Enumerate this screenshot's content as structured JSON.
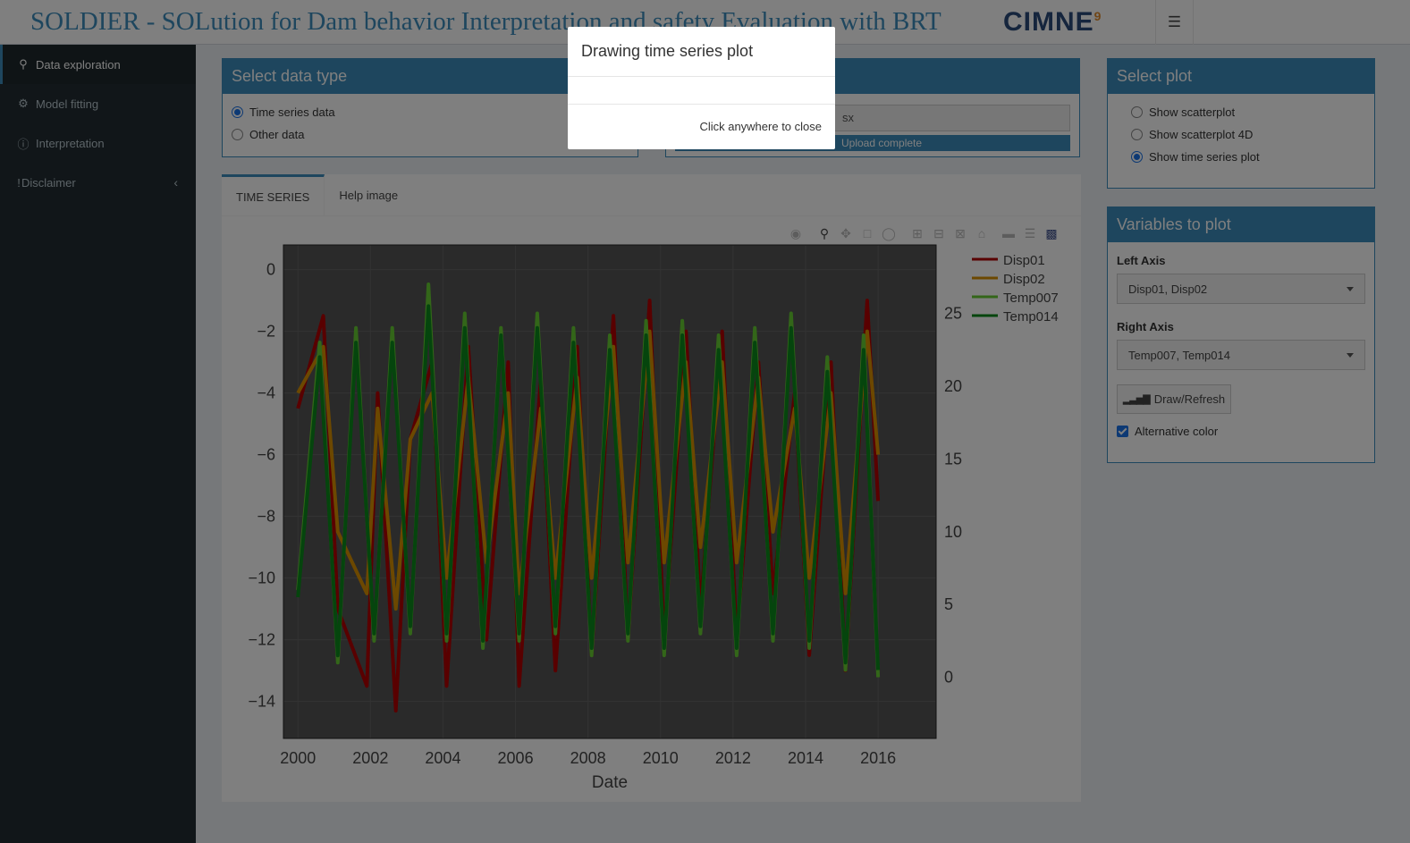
{
  "header": {
    "title": "SOLDIER - SOLution for Dam behavior Interpretation and safety Evaluation with BRT",
    "logo_text": "CIMNE",
    "menu_icon": "hamburger-icon"
  },
  "sidebar": {
    "items": [
      {
        "label": "Data exploration",
        "icon": "search-icon",
        "active": true
      },
      {
        "label": "Model fitting",
        "icon": "gear-icon"
      },
      {
        "label": "Interpretation",
        "icon": "info-icon"
      },
      {
        "label": "Disclaimer",
        "icon": "exclamation-icon"
      }
    ]
  },
  "data_type": {
    "title": "Select data type",
    "options": [
      "Time series data",
      "Other data"
    ],
    "selected": "Time series data"
  },
  "upload": {
    "file_name": "sx",
    "progress_label": "Upload complete"
  },
  "select_plot": {
    "title": "Select plot",
    "options": [
      "Show scatterplot",
      "Show scatterplot 4D",
      "Show time series plot"
    ],
    "selected": "Show time series plot"
  },
  "variables": {
    "title": "Variables to plot",
    "left_label": "Left Axis",
    "left_value": "Disp01, Disp02",
    "right_label": "Right Axis",
    "right_value": "Temp007, Temp014",
    "button": "Draw/Refresh",
    "alt_color_label": "Alternative color",
    "alt_color_checked": true
  },
  "tabs": [
    "TIME SERIES",
    "Help image"
  ],
  "modal": {
    "title": "Drawing time series plot",
    "footer": "Click anywhere to close"
  },
  "chart_data": {
    "type": "line",
    "xlabel": "Date",
    "x_ticks": [
      "2000",
      "2002",
      "2004",
      "2006",
      "2008",
      "2010",
      "2012",
      "2014",
      "2016"
    ],
    "left_ticks": [
      "0",
      "−2",
      "−4",
      "−6",
      "−8",
      "−10",
      "−12",
      "−14"
    ],
    "right_ticks": [
      "25",
      "20",
      "15",
      "10",
      "5",
      "0"
    ],
    "xlim": [
      1999.6,
      2017.6
    ],
    "ylim_left": [
      -15.2,
      0.8
    ],
    "ylim_right": [
      -4.2,
      29.7
    ],
    "legend_position": "top-right",
    "plot_bg": "#555555",
    "series": [
      {
        "name": "Disp01",
        "axis": "left",
        "color": "#b30000",
        "x": [
          2000.0,
          2000.7,
          2001.1,
          2001.9,
          2002.2,
          2002.7,
          2003.1,
          2003.7,
          2004.1,
          2004.7,
          2005.2,
          2005.8,
          2006.1,
          2006.7,
          2007.1,
          2007.7,
          2008.1,
          2008.7,
          2009.1,
          2009.7,
          2010.1,
          2010.7,
          2011.1,
          2011.7,
          2012.1,
          2012.7,
          2013.1,
          2013.7,
          2014.1,
          2014.7,
          2015.1,
          2015.7,
          2016.0
        ],
        "y": [
          -4.5,
          -1.5,
          -11.0,
          -13.5,
          -4.0,
          -14.3,
          -5.5,
          -3.0,
          -13.5,
          -2.5,
          -12.0,
          -3.0,
          -13.5,
          -3.5,
          -13.0,
          -2.5,
          -12.5,
          -1.5,
          -12.0,
          -1.0,
          -12.0,
          -2.0,
          -11.0,
          -2.0,
          -12.0,
          -3.0,
          -10.5,
          -4.0,
          -12.5,
          -3.0,
          -13.0,
          -1.0,
          -7.5
        ]
      },
      {
        "name": "Disp02",
        "axis": "left",
        "color": "#d99000",
        "x": [
          2000.0,
          2000.7,
          2001.1,
          2001.9,
          2002.2,
          2002.7,
          2003.1,
          2003.7,
          2004.1,
          2004.7,
          2005.2,
          2005.8,
          2006.1,
          2006.7,
          2007.1,
          2007.7,
          2008.1,
          2008.7,
          2009.1,
          2009.7,
          2010.1,
          2010.7,
          2011.1,
          2011.7,
          2012.1,
          2012.7,
          2013.1,
          2013.7,
          2014.1,
          2014.7,
          2015.1,
          2015.7,
          2016.0
        ],
        "y": [
          -4.0,
          -2.5,
          -8.5,
          -10.5,
          -4.5,
          -11.0,
          -5.5,
          -4.0,
          -10.0,
          -3.5,
          -9.5,
          -4.0,
          -10.5,
          -4.5,
          -10.0,
          -3.5,
          -10.0,
          -2.5,
          -9.5,
          -2.0,
          -9.5,
          -3.0,
          -9.0,
          -3.0,
          -9.5,
          -3.5,
          -8.5,
          -4.5,
          -10.0,
          -4.0,
          -10.5,
          -2.0,
          -6.0
        ]
      },
      {
        "name": "Temp007",
        "axis": "right",
        "color": "#66cc33",
        "x": [
          2000.0,
          2000.6,
          2001.1,
          2001.6,
          2002.1,
          2002.6,
          2003.1,
          2003.6,
          2004.1,
          2004.6,
          2005.1,
          2005.6,
          2006.1,
          2006.6,
          2007.1,
          2007.6,
          2008.1,
          2008.6,
          2009.1,
          2009.6,
          2010.1,
          2010.6,
          2011.1,
          2011.6,
          2012.1,
          2012.6,
          2013.1,
          2013.6,
          2014.1,
          2014.6,
          2015.1,
          2015.6,
          2016.0
        ],
        "y": [
          6.0,
          23.0,
          1.0,
          24.0,
          2.5,
          24.0,
          3.0,
          27.0,
          2.5,
          25.0,
          2.0,
          24.0,
          2.5,
          25.0,
          3.0,
          24.0,
          1.5,
          23.5,
          2.5,
          24.5,
          1.5,
          24.5,
          3.0,
          23.5,
          1.5,
          24.0,
          2.5,
          25.0,
          2.0,
          22.0,
          0.5,
          23.5,
          0.0
        ]
      },
      {
        "name": "Temp014",
        "axis": "right",
        "color": "#0a8a1a",
        "x": [
          2000.0,
          2000.6,
          2001.1,
          2001.6,
          2002.1,
          2002.6,
          2003.1,
          2003.6,
          2004.1,
          2004.6,
          2005.1,
          2005.6,
          2006.1,
          2006.6,
          2007.1,
          2007.6,
          2008.1,
          2008.6,
          2009.1,
          2009.6,
          2010.1,
          2010.6,
          2011.1,
          2011.6,
          2012.1,
          2012.6,
          2013.1,
          2013.6,
          2014.1,
          2014.6,
          2015.1,
          2015.6,
          2016.0
        ],
        "y": [
          5.5,
          22.0,
          1.5,
          23.0,
          3.0,
          23.0,
          3.5,
          25.5,
          3.0,
          24.0,
          2.5,
          23.5,
          3.0,
          24.0,
          3.5,
          23.0,
          2.0,
          22.5,
          3.0,
          23.5,
          2.0,
          23.5,
          3.5,
          22.5,
          2.0,
          23.0,
          3.0,
          24.0,
          2.5,
          21.0,
          1.0,
          22.5,
          0.5
        ]
      }
    ]
  }
}
